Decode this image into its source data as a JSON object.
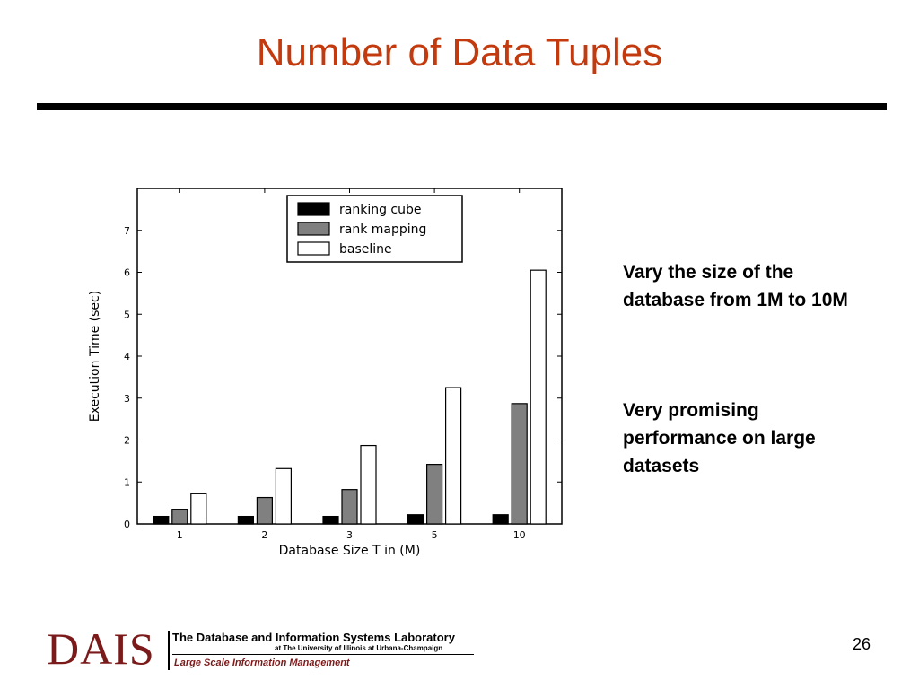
{
  "slide": {
    "title": "Number of Data Tuples",
    "bullets": [
      "Vary the size of the database from 1M to 10M",
      "Very promising performance on large datasets"
    ],
    "page_number": "26"
  },
  "footer": {
    "logo": "DAIS",
    "lab_name": "The Database and Information Systems Laboratory",
    "university": "at The University of Illinois at Urbana-Champaign",
    "tagline": "Large Scale Information Management"
  },
  "chart_data": {
    "type": "bar",
    "xlabel": "Database Size T in (M)",
    "ylabel": "Execution Time (sec)",
    "categories": [
      "1",
      "2",
      "3",
      "5",
      "10"
    ],
    "ylim": [
      0,
      8
    ],
    "yticks": [
      0,
      1,
      2,
      3,
      4,
      5,
      6,
      7
    ],
    "legend_position": "top-center",
    "grid": false,
    "series": [
      {
        "name": "ranking cube",
        "color": "#000000",
        "values": [
          0.18,
          0.18,
          0.18,
          0.22,
          0.22
        ]
      },
      {
        "name": "rank mapping",
        "color": "#808080",
        "values": [
          0.35,
          0.63,
          0.82,
          1.42,
          2.87
        ]
      },
      {
        "name": "baseline",
        "color": "#ffffff",
        "values": [
          0.72,
          1.32,
          1.87,
          3.25,
          6.05
        ]
      }
    ]
  }
}
